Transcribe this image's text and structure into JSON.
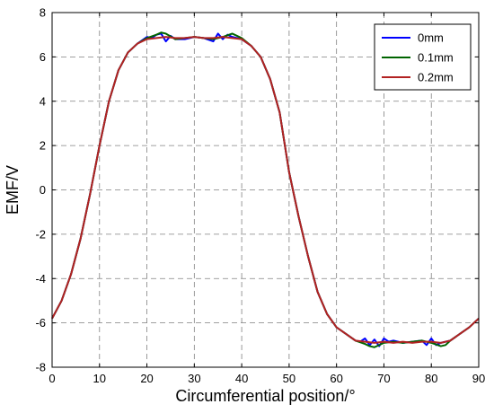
{
  "chart_data": {
    "type": "line",
    "xlabel": "Circumferential position/°",
    "ylabel": "EMF/V",
    "xlim": [
      0,
      90
    ],
    "ylim": [
      -8,
      8
    ],
    "xticks": [
      0,
      10,
      20,
      30,
      40,
      50,
      60,
      70,
      80,
      90
    ],
    "yticks": [
      -8,
      -6,
      -4,
      -2,
      0,
      2,
      4,
      6,
      8
    ],
    "grid": true,
    "legend_position": "top-right",
    "series": [
      {
        "name": "0mm",
        "color": "#0000ff",
        "x": [
          0,
          2,
          4,
          6,
          8,
          10,
          12,
          14,
          16,
          18,
          20,
          21,
          22,
          23,
          24,
          25,
          26,
          28,
          30,
          32,
          34,
          35,
          36,
          37,
          38,
          40,
          42,
          44,
          46,
          48,
          50,
          52,
          54,
          56,
          58,
          60,
          62,
          64,
          65,
          66,
          67,
          68,
          69,
          70,
          71,
          72,
          74,
          76,
          78,
          79,
          80,
          81,
          82,
          84,
          86,
          88,
          90
        ],
        "y": [
          -5.8,
          -5.0,
          -3.8,
          -2.2,
          -0.2,
          2.0,
          4.0,
          5.4,
          6.2,
          6.6,
          6.9,
          6.85,
          7.0,
          7.05,
          6.7,
          6.95,
          6.8,
          6.8,
          6.9,
          6.85,
          6.7,
          7.05,
          6.8,
          7.0,
          6.9,
          6.8,
          6.5,
          6.0,
          5.0,
          3.5,
          0.8,
          -1.2,
          -3.0,
          -4.6,
          -5.6,
          -6.2,
          -6.5,
          -6.8,
          -6.85,
          -6.7,
          -7.0,
          -6.75,
          -7.05,
          -6.7,
          -6.85,
          -6.8,
          -6.9,
          -6.85,
          -6.8,
          -7.0,
          -6.7,
          -7.0,
          -6.9,
          -6.8,
          -6.5,
          -6.2,
          -5.8
        ]
      },
      {
        "name": "0.1mm",
        "color": "#006400",
        "x": [
          0,
          2,
          4,
          6,
          8,
          10,
          12,
          14,
          16,
          18,
          20,
          22,
          23,
          24,
          26,
          28,
          30,
          32,
          34,
          36,
          38,
          40,
          42,
          44,
          46,
          48,
          50,
          52,
          54,
          56,
          58,
          60,
          62,
          64,
          66,
          67,
          68,
          70,
          72,
          74,
          76,
          78,
          80,
          82,
          83,
          84,
          86,
          88,
          90
        ],
        "y": [
          -5.8,
          -5.0,
          -3.8,
          -2.2,
          -0.2,
          2.0,
          4.0,
          5.4,
          6.2,
          6.6,
          6.85,
          7.0,
          7.1,
          7.05,
          6.8,
          6.85,
          6.9,
          6.85,
          6.8,
          6.9,
          7.05,
          6.85,
          6.5,
          6.0,
          5.0,
          3.5,
          0.8,
          -1.2,
          -3.0,
          -4.6,
          -5.6,
          -6.2,
          -6.5,
          -6.8,
          -6.95,
          -7.05,
          -7.1,
          -6.9,
          -6.85,
          -6.9,
          -6.85,
          -6.8,
          -6.9,
          -7.05,
          -7.0,
          -6.8,
          -6.5,
          -6.2,
          -5.8
        ]
      },
      {
        "name": "0.2mm",
        "color": "#b22222",
        "x": [
          0,
          2,
          4,
          6,
          8,
          10,
          12,
          14,
          16,
          18,
          20,
          22,
          24,
          26,
          28,
          30,
          32,
          34,
          36,
          38,
          40,
          42,
          44,
          46,
          48,
          50,
          52,
          54,
          56,
          58,
          60,
          62,
          64,
          66,
          68,
          70,
          72,
          74,
          76,
          78,
          80,
          82,
          84,
          86,
          88,
          90
        ],
        "y": [
          -5.8,
          -5.0,
          -3.8,
          -2.2,
          -0.2,
          2.0,
          4.0,
          5.4,
          6.2,
          6.6,
          6.8,
          6.85,
          6.9,
          6.85,
          6.85,
          6.9,
          6.85,
          6.85,
          6.9,
          6.85,
          6.8,
          6.5,
          6.0,
          5.0,
          3.5,
          0.8,
          -1.2,
          -3.0,
          -4.6,
          -5.6,
          -6.2,
          -6.5,
          -6.8,
          -6.85,
          -6.9,
          -6.85,
          -6.9,
          -6.85,
          -6.9,
          -6.85,
          -6.85,
          -6.9,
          -6.8,
          -6.5,
          -6.2,
          -5.8
        ]
      }
    ]
  }
}
